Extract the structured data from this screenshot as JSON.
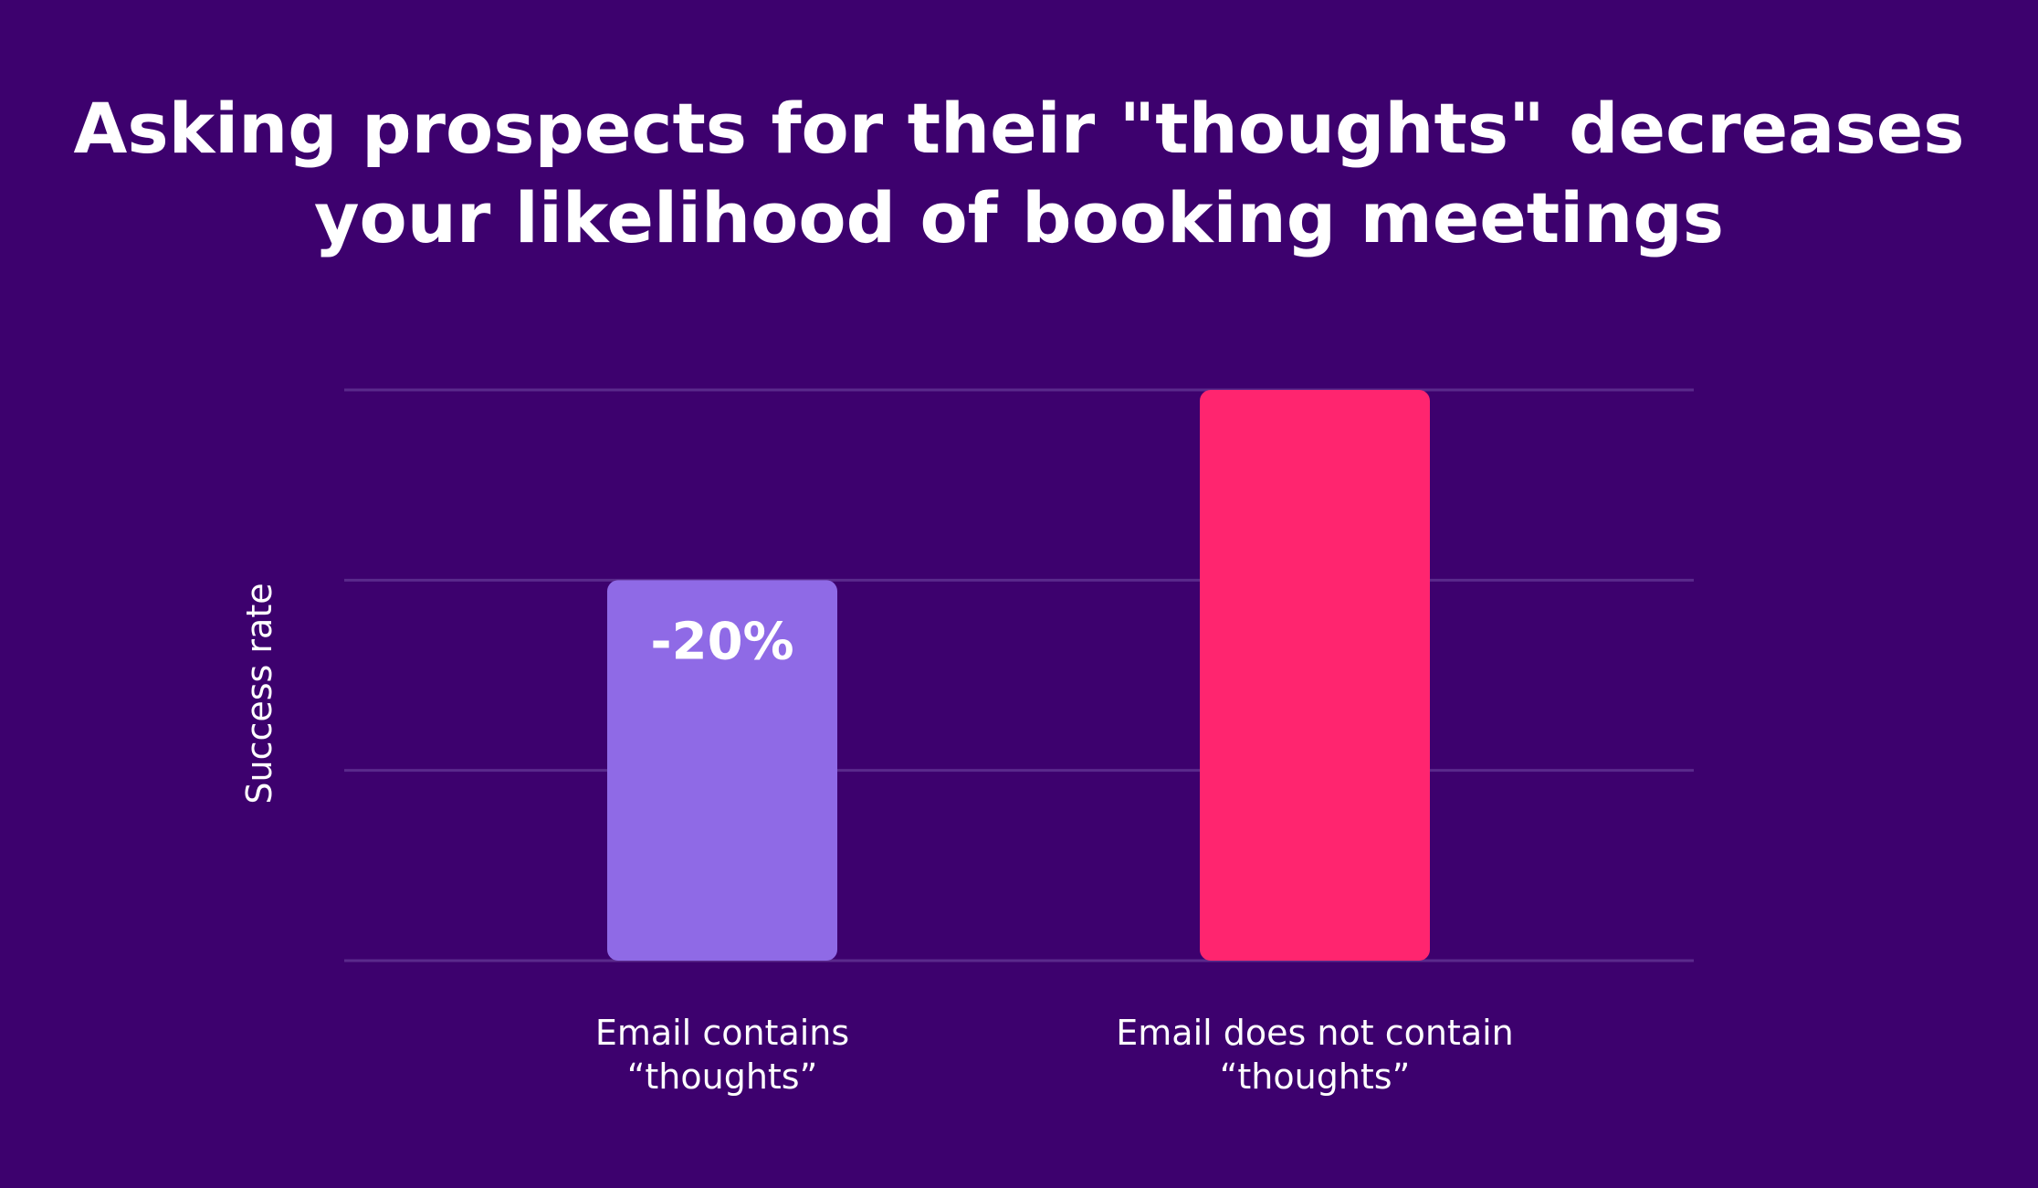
{
  "title_lines": [
    "Asking prospects for their \"thoughts\" decreases",
    "your likelihood of booking meetings"
  ],
  "colors": {
    "background": "#3d016e",
    "gridline": "#5a2a8c",
    "text": "#ffffff"
  },
  "chart_data": {
    "type": "bar",
    "title": "Asking prospects for their \"thoughts\" decreases your likelihood of booking meetings",
    "ylabel": "Success rate",
    "xlabel": "",
    "ylim": [
      0,
      3
    ],
    "grid": true,
    "y_ticks_labeled": false,
    "categories": [
      [
        "Email contains",
        "“thoughts”"
      ],
      [
        "Email does not contain",
        "“thoughts”"
      ]
    ],
    "values": [
      2.0,
      3.0
    ],
    "bar_colors": [
      "#8f6ae6",
      "#ff256f"
    ],
    "data_labels": [
      "-20%",
      ""
    ]
  }
}
